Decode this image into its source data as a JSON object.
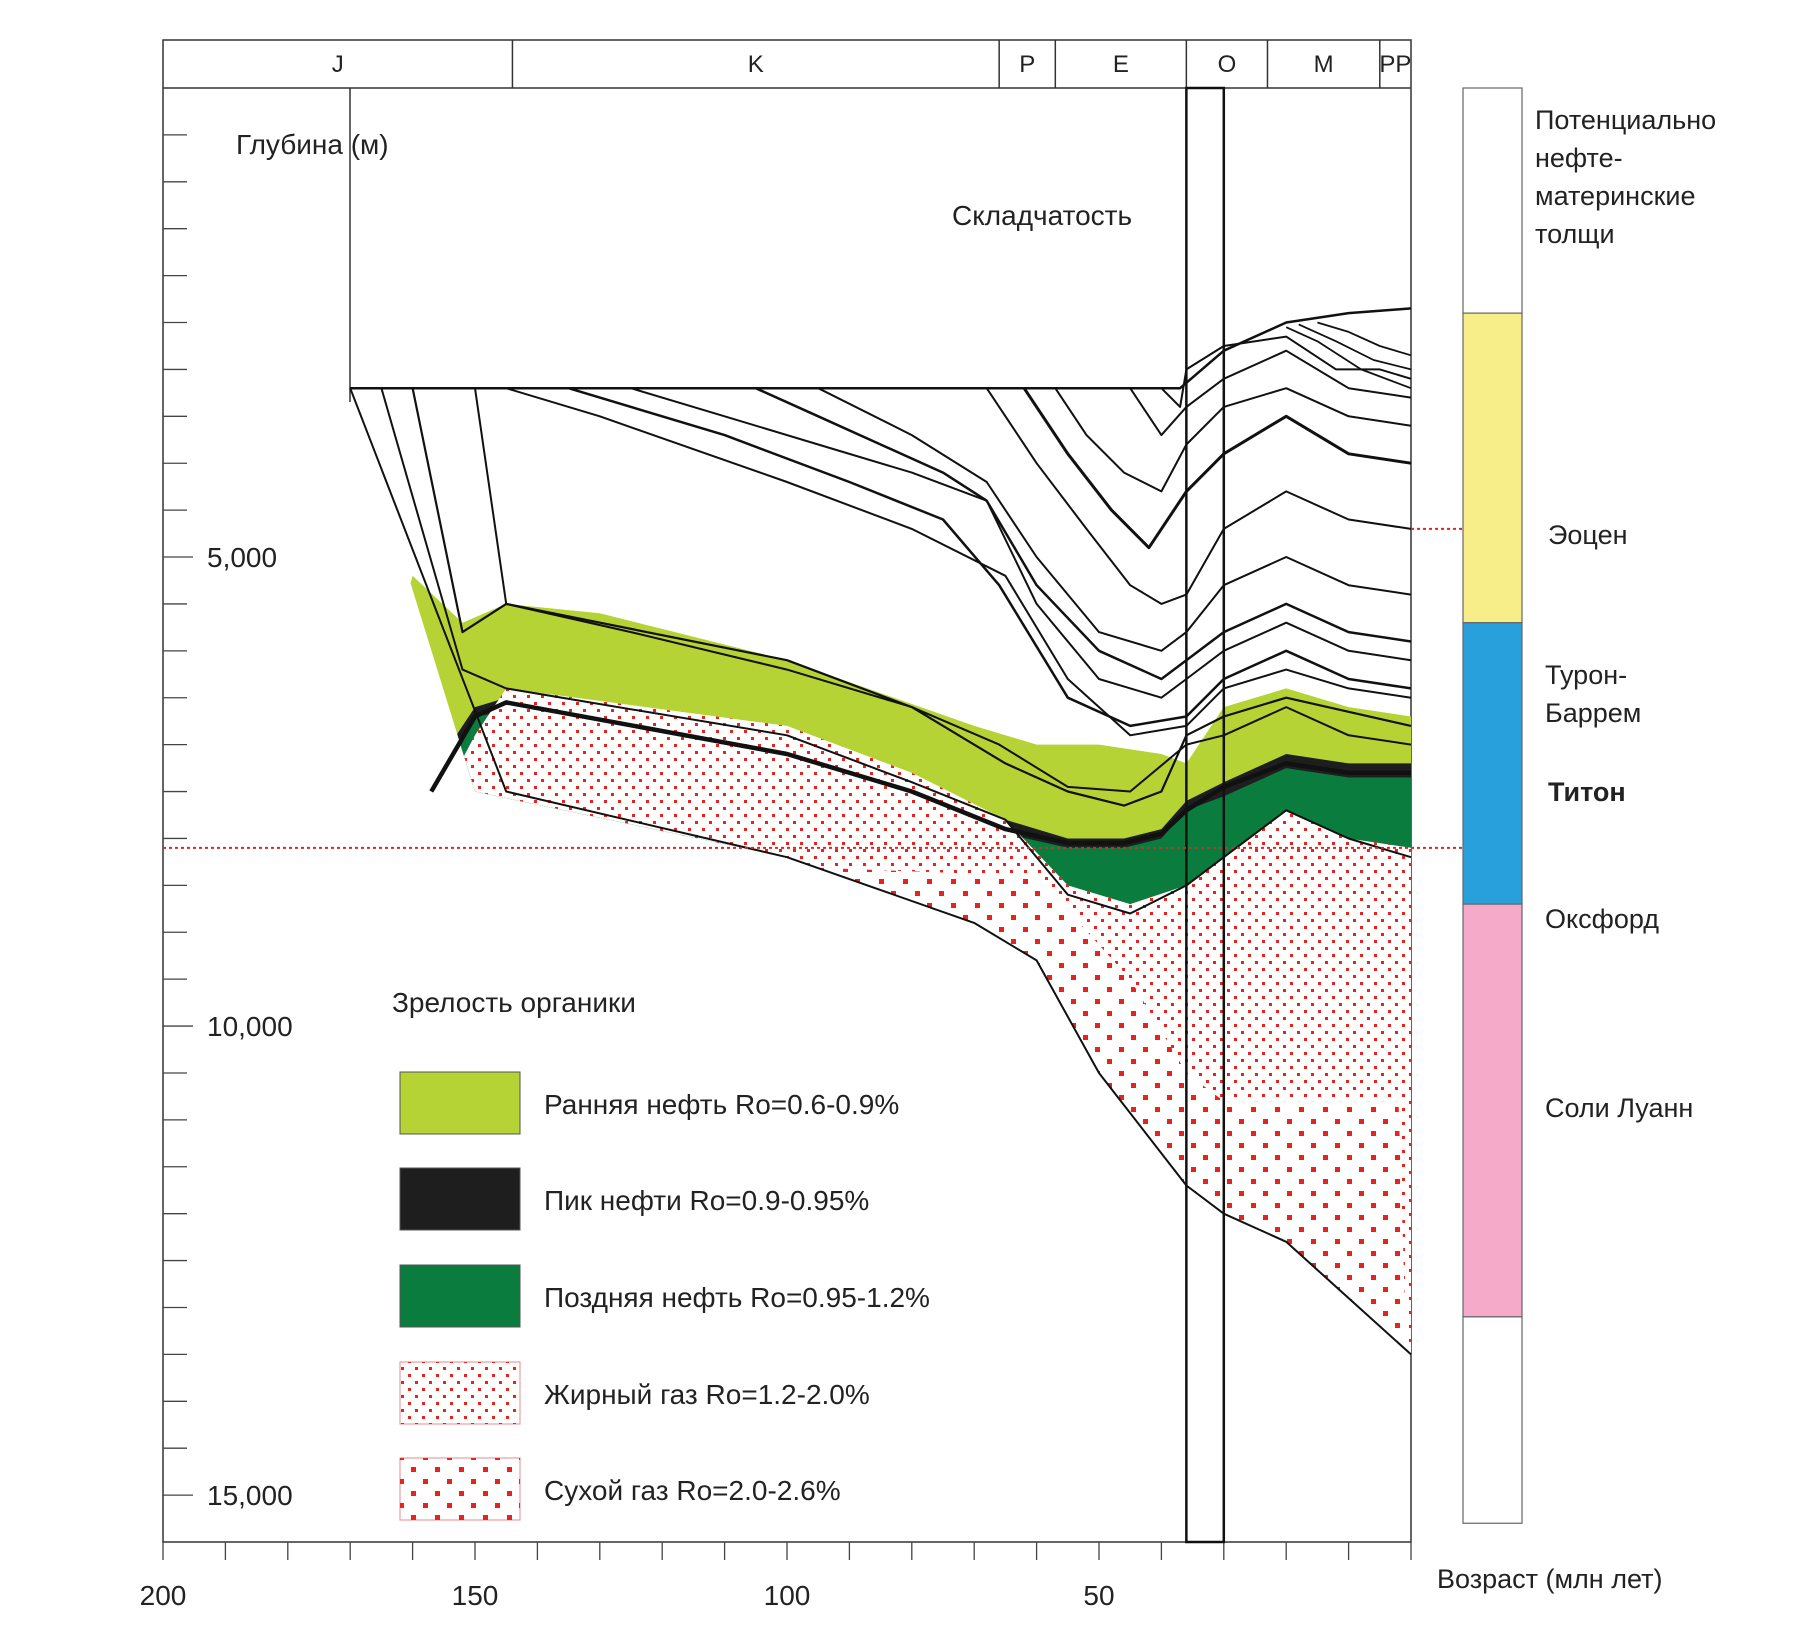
{
  "chart_data": {
    "type": "area",
    "title": "",
    "xlabel": "Возраст (млн лет)",
    "ylabel": "Глубина (м)",
    "xlim": [
      200,
      0
    ],
    "ylim": [
      0,
      15500
    ],
    "x_ticks": [
      200,
      150,
      100,
      50
    ],
    "y_ticks": [
      5000,
      10000,
      15000
    ],
    "x_tick_labels": [
      "200",
      "150",
      "100",
      "50"
    ],
    "y_tick_labels": [
      "5,000",
      "10,000",
      "15,000"
    ],
    "periods": [
      {
        "label": "J",
        "from": 200,
        "to": 144
      },
      {
        "label": "K",
        "from": 144,
        "to": 66
      },
      {
        "label": "P",
        "from": 66,
        "to": 57
      },
      {
        "label": "E",
        "from": 57,
        "to": 36
      },
      {
        "label": "O",
        "from": 36,
        "to": 23
      },
      {
        "label": "M",
        "from": 23,
        "to": 5
      },
      {
        "label": "PP",
        "from": 5,
        "to": 0
      }
    ],
    "annotations": {
      "folding": "Складчатость",
      "folding_window": [
        36,
        30
      ]
    },
    "reference_lines_depth": [
      4700,
      8100
    ],
    "maturity": [
      {
        "name": "Ранняя нефть Ro=0.6-0.9%",
        "color": "#b5d334",
        "pattern": "solid",
        "top": [
          [
            160,
            5200
          ],
          [
            152,
            5700
          ],
          [
            145,
            5500
          ],
          [
            130,
            5600
          ],
          [
            100,
            6100
          ],
          [
            70,
            6800
          ],
          [
            60,
            7000
          ],
          [
            50,
            7000
          ],
          [
            40,
            7100
          ],
          [
            36,
            7200
          ],
          [
            30,
            6600
          ],
          [
            20,
            6400
          ],
          [
            10,
            6600
          ],
          [
            0,
            6700
          ]
        ]
      },
      {
        "name": "Пик нефти Ro=0.9-0.95%",
        "color": "#1e1e1e",
        "pattern": "solid",
        "top": [
          [
            160,
            7600
          ],
          [
            150,
            6600
          ],
          [
            145,
            6500
          ],
          [
            100,
            7000
          ],
          [
            80,
            7400
          ],
          [
            65,
            7800
          ],
          [
            55,
            8000
          ],
          [
            46,
            8000
          ],
          [
            40,
            7900
          ],
          [
            36,
            7600
          ],
          [
            30,
            7400
          ],
          [
            20,
            7100
          ],
          [
            10,
            7200
          ],
          [
            0,
            7200
          ]
        ]
      },
      {
        "name": "Поздняя нефть Ro=0.95-1.2%",
        "color": "#0a7d3e",
        "pattern": "solid",
        "top": [
          [
            158,
            7800
          ],
          [
            150,
            6700
          ],
          [
            145,
            6650
          ],
          [
            100,
            7150
          ],
          [
            80,
            7550
          ],
          [
            65,
            7950
          ],
          [
            55,
            8100
          ],
          [
            46,
            8100
          ],
          [
            40,
            8000
          ],
          [
            36,
            7700
          ],
          [
            30,
            7550
          ],
          [
            20,
            7250
          ],
          [
            10,
            7350
          ],
          [
            0,
            7350
          ]
        ]
      },
      {
        "name": "Жирный газ Ro=1.2-2.0%",
        "color": "#e8231f",
        "pattern": "fine-dots",
        "top": [
          [
            158,
            7900
          ],
          [
            150,
            6900
          ],
          [
            145,
            6400
          ],
          [
            100,
            6800
          ],
          [
            80,
            7300
          ],
          [
            65,
            7800
          ],
          [
            55,
            8500
          ],
          [
            45,
            8700
          ],
          [
            36,
            8500
          ],
          [
            30,
            8200
          ],
          [
            20,
            7700
          ],
          [
            10,
            8000
          ],
          [
            0,
            8100
          ]
        ]
      },
      {
        "name": "Сухой газ Ro=2.0-2.6%",
        "color": "#e8231f",
        "pattern": "coarse-dots",
        "top": [
          [
            145,
            8100
          ],
          [
            100,
            8300
          ],
          [
            60,
            8400
          ],
          [
            45,
            9500
          ],
          [
            36,
            10500
          ],
          [
            30,
            10800
          ],
          [
            20,
            10800
          ],
          [
            10,
            10800
          ],
          [
            2,
            10800
          ]
        ]
      }
    ],
    "source_rocks": [
      {
        "name": "Потенциально нефте- материнские толщи",
        "color": "#ffffff",
        "top": 0,
        "bottom": 2400
      },
      {
        "name": "Эоцен",
        "color": "#f7ee8a",
        "top": 2400,
        "bottom": 5700
      },
      {
        "name": "Турон- Баррем",
        "color": "#27a0db",
        "top": 5700,
        "bottom": 8700
      },
      {
        "name": "Титон",
        "color": "#27a0db",
        "top": 5700,
        "bottom": 8700,
        "bold": true
      },
      {
        "name": "Оксфорд",
        "color": "#f4aac8",
        "top": 8700,
        "bottom": 13100
      },
      {
        "name": "Соли Луанн",
        "color": "#f4aac8",
        "top": 8700,
        "bottom": 13100
      },
      {
        "name": "",
        "color": "#ffffff",
        "top": 13100,
        "bottom": 15300
      }
    ]
  },
  "labels": {
    "depth_axis": "Глубина (м)",
    "folding": "Складчатость",
    "legend_title": "Зрелость органики",
    "age_axis": "Возраст (млн лет)",
    "col_header": "Потенциально нефте- материнские толщи",
    "col_eocene": "Эоцен",
    "col_turon": "Турон- Баррем",
    "col_titon": "Титон",
    "col_oxford": "Оксфорд",
    "col_salt": "Соли Луанн"
  },
  "legend": [
    {
      "label": "Ранняя нефть Ro=0.6-0.9%",
      "color": "#b5d334",
      "pattern": "solid"
    },
    {
      "label": "Пик нефти Ro=0.9-0.95%",
      "color": "#1e1e1e",
      "pattern": "solid"
    },
    {
      "label": "Поздняя нефть Ro=0.95-1.2%",
      "color": "#0a7d3e",
      "pattern": "solid"
    },
    {
      "label": "Жирный газ Ro=1.2-2.0%",
      "color": "#e8231f",
      "pattern": "fine-dots"
    },
    {
      "label": "Сухой газ Ro=2.0-2.6%",
      "color": "#e8231f",
      "pattern": "coarse-dots"
    }
  ]
}
